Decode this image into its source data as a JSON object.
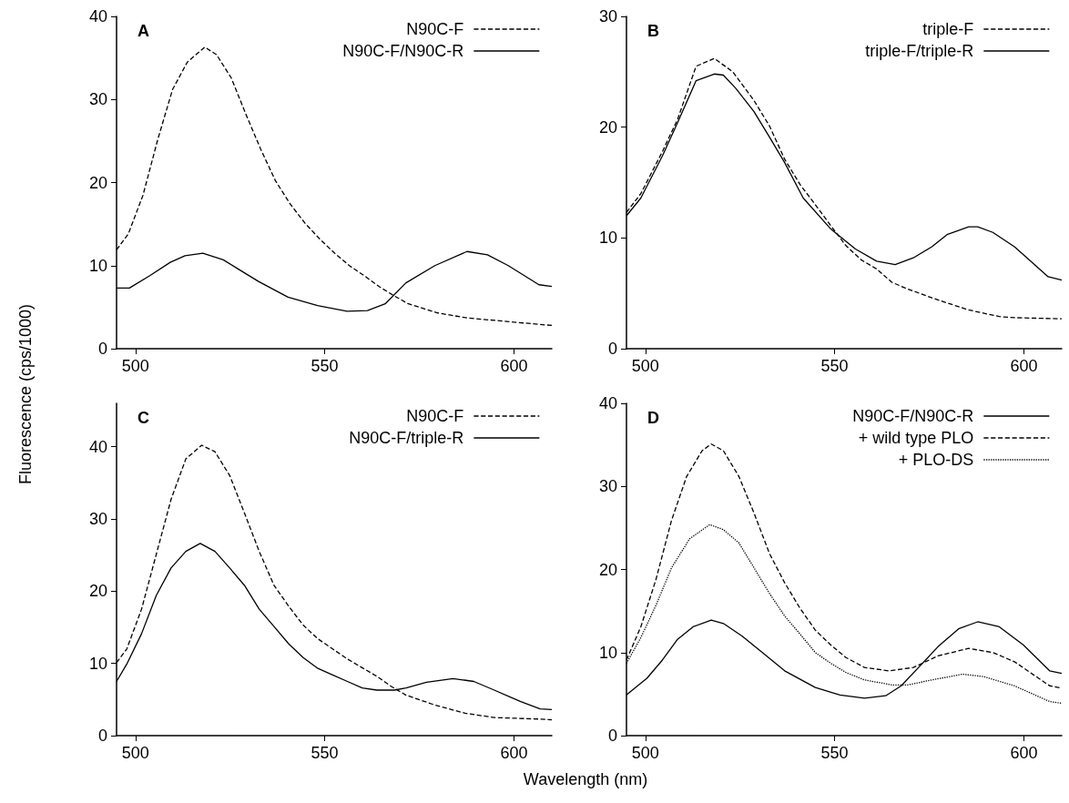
{
  "chart_data": [
    {
      "type": "line",
      "title": "A",
      "ylabel": "Fluorescence (cps/1000)",
      "xlim": [
        495,
        610
      ],
      "xticks": [
        500,
        550,
        600
      ],
      "ylim": [
        0,
        40
      ],
      "yticks": [
        0,
        10,
        20,
        30,
        40
      ],
      "grid": false,
      "legend": "top right",
      "marker": "none",
      "series": [
        {
          "name": "N90C-F",
          "color": "#000000",
          "line_style": "dashed",
          "x": [
            495,
            498.1,
            502,
            505.9,
            509.8,
            513.7,
            518.3,
            521.4,
            525.3,
            529.2,
            533.1,
            537,
            540.9,
            544.8,
            548.7,
            552.6,
            556.5,
            560.4,
            564.3,
            568.2,
            572.1,
            579.9,
            587.7,
            600,
            610
          ],
          "values": [
            11.9,
            13.8,
            18.5,
            25.2,
            31.2,
            34.5,
            36.3,
            35.4,
            32.6,
            28.2,
            24.0,
            20.2,
            17.4,
            15.1,
            13.2,
            11.5,
            10.0,
            8.8,
            7.5,
            6.4,
            5.4,
            4.3,
            3.7,
            3.2,
            2.8
          ]
        },
        {
          "name": "N90C-F/N90C-R",
          "color": "#000000",
          "line_style": "solid",
          "x": [
            495,
            498.4,
            503.8,
            509.2,
            513.1,
            517.8,
            523.2,
            527.1,
            532.5,
            540.3,
            548.1,
            555.9,
            561.3,
            566,
            571.4,
            579.1,
            587.6,
            593,
            598.5,
            606.6,
            610
          ],
          "values": [
            7.3,
            7.3,
            8.8,
            10.4,
            11.2,
            11.5,
            10.7,
            9.6,
            8.1,
            6.2,
            5.2,
            4.5,
            4.6,
            5.4,
            7.9,
            10.0,
            11.7,
            11.3,
            10.0,
            7.7,
            7.5
          ]
        }
      ]
    },
    {
      "type": "line",
      "title": "B",
      "xlim": [
        495,
        610
      ],
      "xticks": [
        500,
        550,
        600
      ],
      "ylim": [
        0,
        30
      ],
      "yticks": [
        0,
        10,
        20,
        30
      ],
      "grid": false,
      "legend": "top right",
      "marker": "none",
      "series": [
        {
          "name": "triple-F",
          "color": "#000000",
          "line_style": "dashed",
          "x": [
            495,
            498.8,
            504.5,
            508.5,
            513.4,
            518.2,
            523.1,
            528.7,
            532.8,
            536.8,
            540.9,
            544.9,
            549,
            553,
            557.1,
            561.1,
            565.1,
            569.2,
            577.3,
            585.4,
            593.5,
            597.5,
            610
          ],
          "values": [
            12.3,
            14.0,
            17.8,
            20.7,
            25.5,
            26.2,
            25.0,
            22.4,
            20.1,
            17.1,
            14.8,
            13.0,
            11.1,
            9.3,
            8.0,
            7.2,
            6.0,
            5.4,
            4.4,
            3.5,
            2.9,
            2.8,
            2.7
          ]
        },
        {
          "name": "triple-F/triple-R",
          "color": "#000000",
          "line_style": "solid",
          "x": [
            495,
            498.8,
            504.5,
            508.5,
            513.4,
            518.2,
            520.6,
            523.9,
            528.7,
            532.8,
            536.8,
            541.7,
            549,
            555.5,
            561.1,
            566,
            570.8,
            575.7,
            579.7,
            585.4,
            587.8,
            591.8,
            597.5,
            601.5,
            606.4,
            610
          ],
          "values": [
            12.0,
            13.6,
            17.4,
            20.4,
            24.2,
            24.8,
            24.7,
            23.5,
            21.4,
            19.1,
            16.8,
            13.6,
            10.8,
            9.0,
            7.9,
            7.6,
            8.2,
            9.2,
            10.3,
            11.0,
            11.0,
            10.5,
            9.2,
            8.0,
            6.5,
            6.2
          ]
        }
      ]
    },
    {
      "type": "line",
      "title": "C",
      "xlabel": "Wavelength (nm)",
      "xlim": [
        495,
        610
      ],
      "xticks": [
        500,
        550,
        600
      ],
      "ylim": [
        0,
        46
      ],
      "yticks": [
        0,
        10,
        20,
        30,
        40
      ],
      "grid": false,
      "legend": "top right",
      "marker": "none",
      "series": [
        {
          "name": "N90C-F",
          "color": "#000000",
          "line_style": "dashed",
          "x": [
            495,
            497.7,
            501.6,
            505.5,
            509.4,
            513.3,
            517.5,
            521,
            524.9,
            528.8,
            532.7,
            536.6,
            540.5,
            544.3,
            548.2,
            552.1,
            556,
            559.9,
            563.8,
            567.6,
            571.5,
            579.3,
            587.1,
            594.8,
            606.5,
            610
          ],
          "values": [
            10.1,
            12.0,
            17.5,
            25.1,
            32.7,
            38.3,
            40.2,
            39.3,
            36.0,
            30.8,
            25.5,
            20.8,
            17.9,
            15.3,
            13.4,
            12.0,
            10.6,
            9.4,
            8.2,
            6.8,
            5.6,
            4.2,
            3.1,
            2.5,
            2.3,
            2.2
          ]
        },
        {
          "name": "N90C-F/triple-R",
          "color": "#000000",
          "line_style": "solid",
          "x": [
            495,
            497.7,
            501.6,
            505.5,
            509.4,
            513.3,
            517.1,
            521,
            524.9,
            528.8,
            532.7,
            536.6,
            540.5,
            544.3,
            548.2,
            552.1,
            556,
            559.9,
            563.8,
            568.4,
            571.5,
            576.9,
            583.9,
            589.4,
            594.8,
            601.8,
            606.9,
            610
          ],
          "values": [
            7.5,
            9.9,
            14.1,
            19.4,
            23.2,
            25.5,
            26.6,
            25.5,
            23.2,
            20.8,
            17.5,
            15.1,
            12.7,
            10.8,
            9.3,
            8.4,
            7.5,
            6.6,
            6.3,
            6.3,
            6.6,
            7.4,
            7.9,
            7.5,
            6.3,
            4.7,
            3.7,
            3.6
          ]
        }
      ]
    },
    {
      "type": "line",
      "title": "D",
      "xlim": [
        495,
        610
      ],
      "xticks": [
        500,
        550,
        600
      ],
      "ylim": [
        0,
        40
      ],
      "yticks": [
        0,
        10,
        20,
        30,
        40
      ],
      "grid": false,
      "legend": "top right",
      "marker": "none",
      "series": [
        {
          "name": "N90C-F/N90C-R",
          "color": "#000000",
          "line_style": "solid",
          "x": [
            495,
            500.4,
            504.5,
            508.5,
            512.6,
            517.4,
            520.6,
            525.5,
            530.4,
            536.8,
            544.9,
            551.4,
            557.9,
            563.5,
            567.6,
            573.2,
            577.3,
            582.9,
            587.8,
            593.5,
            599.9,
            606.8,
            610
          ],
          "values": [
            4.9,
            6.9,
            9.1,
            11.6,
            13.1,
            13.9,
            13.5,
            12.0,
            10.2,
            7.8,
            5.8,
            4.9,
            4.5,
            4.8,
            6.0,
            8.7,
            10.7,
            12.9,
            13.7,
            13.1,
            10.9,
            7.8,
            7.5
          ]
        },
        {
          "name": "+ wild type PLO",
          "color": "#000000",
          "line_style": "dashed",
          "x": [
            495,
            498.8,
            502.8,
            506.9,
            510.9,
            515,
            517.4,
            520.6,
            524.7,
            528.7,
            532.8,
            536.8,
            540.9,
            544.9,
            549,
            553,
            557.9,
            564.3,
            570.8,
            577.3,
            585.4,
            591.8,
            597.5,
            606.8,
            610
          ],
          "values": [
            9.1,
            13.1,
            18.8,
            25.9,
            31.2,
            34.3,
            35.1,
            34.3,
            31.2,
            26.8,
            21.9,
            18.4,
            15.3,
            12.7,
            10.9,
            9.4,
            8.2,
            7.8,
            8.2,
            9.6,
            10.5,
            10.0,
            8.9,
            6.0,
            5.7
          ]
        },
        {
          "name": "+ PLO-DS",
          "color": "#000000",
          "line_style": "dotted",
          "x": [
            495,
            498.8,
            502.8,
            506.9,
            511.7,
            517,
            520.6,
            524.7,
            528.7,
            532.8,
            536.8,
            540.9,
            544.9,
            549,
            553,
            557.9,
            565.2,
            569.2,
            575.7,
            583.8,
            589.4,
            597.5,
            606.8,
            610
          ],
          "values": [
            8.7,
            11.8,
            15.7,
            20.2,
            23.7,
            25.4,
            24.8,
            23.2,
            20.2,
            17.1,
            14.4,
            12.2,
            10.0,
            8.7,
            7.6,
            6.7,
            6.1,
            6.1,
            6.7,
            7.4,
            7.1,
            6.0,
            4.1,
            3.9
          ]
        }
      ]
    }
  ]
}
